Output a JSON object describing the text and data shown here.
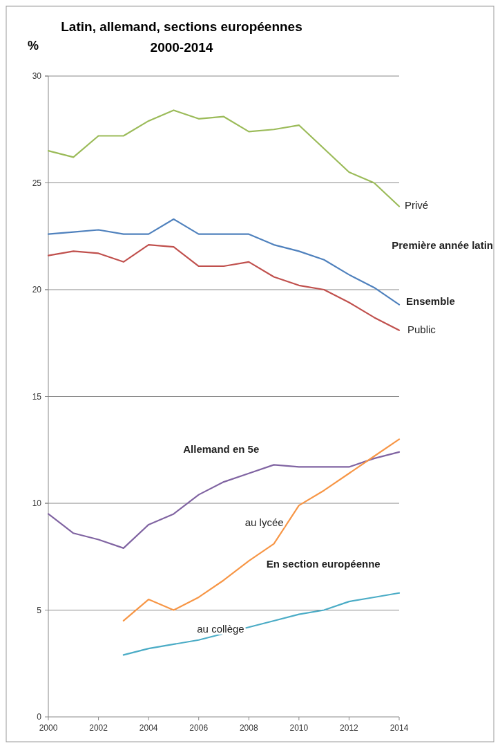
{
  "chart_data": {
    "type": "line",
    "title": "Latin, allemand, sections européennes",
    "subtitle": "2000-2014",
    "ylabel": "%",
    "x": [
      2000,
      2001,
      2002,
      2003,
      2004,
      2005,
      2006,
      2007,
      2008,
      2009,
      2010,
      2011,
      2012,
      2013,
      2014
    ],
    "series": [
      {
        "name": "Privé",
        "color": "#9bbb59",
        "values": [
          26.5,
          26.2,
          27.2,
          27.2,
          27.9,
          28.4,
          28.0,
          28.1,
          27.4,
          27.5,
          27.7,
          26.6,
          25.5,
          25.0,
          23.9
        ]
      },
      {
        "name": "Ensemble",
        "color": "#4f81bd",
        "values": [
          22.6,
          22.7,
          22.8,
          22.6,
          22.6,
          23.3,
          22.6,
          22.6,
          22.6,
          22.1,
          21.8,
          21.4,
          20.7,
          20.1,
          19.3
        ]
      },
      {
        "name": "Public",
        "color": "#c0504d",
        "values": [
          21.6,
          21.8,
          21.7,
          21.3,
          22.1,
          22.0,
          21.1,
          21.1,
          21.3,
          20.6,
          20.2,
          20.0,
          19.4,
          18.7,
          18.1
        ]
      },
      {
        "name": "Allemand en 5e",
        "color": "#8064a2",
        "values": [
          9.5,
          8.6,
          8.3,
          7.9,
          9.0,
          9.5,
          10.4,
          11.0,
          11.4,
          11.8,
          11.7,
          11.7,
          11.7,
          12.1,
          12.4
        ]
      },
      {
        "name": "au lycée",
        "color": "#f79646",
        "values": [
          null,
          null,
          null,
          4.5,
          5.5,
          5.0,
          5.6,
          6.4,
          7.3,
          8.1,
          9.9,
          10.6,
          11.4,
          12.2,
          13.0
        ]
      },
      {
        "name": "au collège",
        "color": "#4bacc6",
        "values": [
          null,
          null,
          null,
          2.9,
          3.2,
          3.4,
          3.6,
          3.9,
          4.2,
          4.5,
          4.8,
          5.0,
          5.4,
          5.6,
          5.8
        ]
      }
    ],
    "annotations": [
      "Première année latin",
      "En section européenne"
    ],
    "xlim": [
      2000,
      2014
    ],
    "xticks": [
      2000,
      2002,
      2004,
      2006,
      2008,
      2010,
      2012,
      2014
    ],
    "ylim": [
      0,
      30
    ],
    "yticks": [
      0,
      5,
      10,
      15,
      20,
      25,
      30
    ],
    "grid": "y",
    "marker": "none",
    "line_style": "solid"
  }
}
